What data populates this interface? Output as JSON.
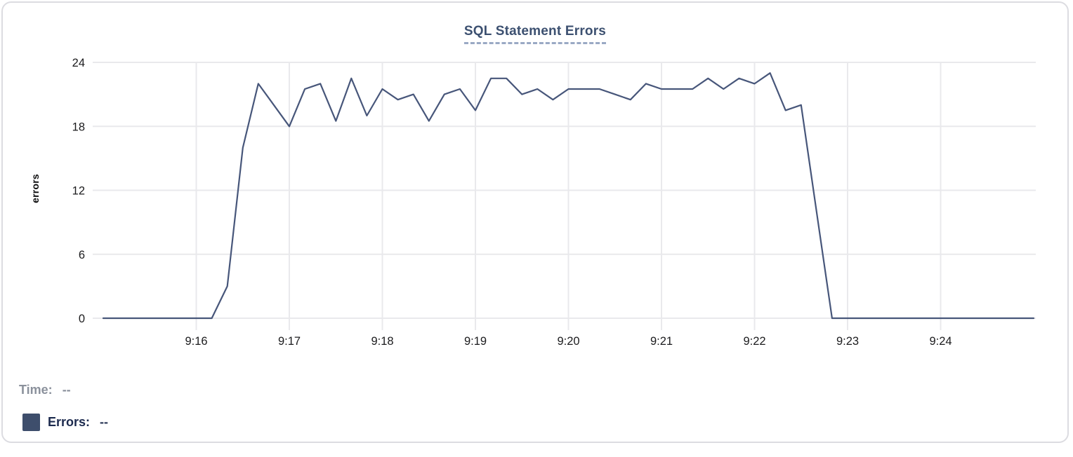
{
  "chart_data": {
    "type": "line",
    "title": "SQL Statement Errors",
    "xlabel": "",
    "ylabel": "errors",
    "ylim": [
      0,
      24
    ],
    "yticks": [
      0,
      6,
      12,
      18,
      24
    ],
    "grid": true,
    "legend_position": "none",
    "x_start": "9:15:00",
    "x_end": "9:25:00",
    "sample_interval_seconds": 10,
    "xticks": [
      {
        "label": "9:16",
        "t": 60
      },
      {
        "label": "9:17",
        "t": 120
      },
      {
        "label": "9:18",
        "t": 180
      },
      {
        "label": "9:19",
        "t": 240
      },
      {
        "label": "9:20",
        "t": 300
      },
      {
        "label": "9:21",
        "t": 360
      },
      {
        "label": "9:22",
        "t": 420
      },
      {
        "label": "9:23",
        "t": 480
      },
      {
        "label": "9:24",
        "t": 540
      }
    ],
    "series": [
      {
        "name": "Errors",
        "color": "#47567a",
        "values": [
          0,
          0,
          0,
          0,
          0,
          0,
          0,
          0,
          3,
          16,
          22,
          20,
          18,
          21.5,
          22,
          18.5,
          22.5,
          19,
          21.5,
          20.5,
          21,
          18.5,
          21,
          21.5,
          19.5,
          22.5,
          22.5,
          21,
          21.5,
          20.5,
          21.5,
          21.5,
          21.5,
          21,
          20.5,
          22,
          21.5,
          21.5,
          21.5,
          22.5,
          21.5,
          22.5,
          22,
          23,
          19.5,
          20,
          10,
          0,
          0,
          0,
          0,
          0,
          0,
          0,
          0,
          0,
          0,
          0,
          0,
          0,
          0
        ]
      }
    ]
  },
  "footer": {
    "time_label": "Time:",
    "time_value": "--",
    "errors_label": "Errors:",
    "errors_value": "--",
    "swatch_color": "#3e4e6c"
  },
  "colors": {
    "title": "#3c5070",
    "title_underline": "#9aa9c4",
    "gridline": "#e9e9ec",
    "tick_label": "#1b1b1d",
    "card_border": "#dcdce1",
    "line": "#47567a"
  }
}
